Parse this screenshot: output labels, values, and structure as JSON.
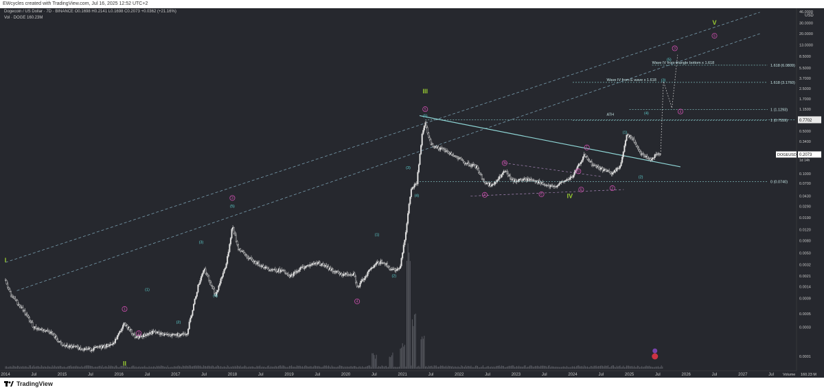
{
  "header": {
    "caption": "EWcycles created with TradingView.com, Jul 16, 2025 12:52 UTC+2"
  },
  "legend": {
    "line1": "Dogecoin / US Dollar · 7D · BINANCE  O0.1698  H0.2141  L0.1698  C0.2073  +0.0362 (+21.16%)",
    "line2": "Vol · DOGE   160.23M"
  },
  "footer": {
    "brand": "TradingView"
  },
  "colors": {
    "background": "#26282e",
    "candle": "#d6d6d6",
    "teal": "#5fd3d3",
    "magenta": "#d04fb0",
    "green": "#9acd32",
    "channel": "#7a9fb0",
    "price_tag": "#ffffff"
  },
  "chart_data": {
    "type": "candlestick",
    "symbol": "DOGEUSD",
    "timeframe": "7D",
    "y_scale": "log",
    "ylabel": "USD",
    "y_ticks": [
      "46.0000",
      "30.0000",
      "20.0000",
      "13.0000",
      "8.5000",
      "5.5000",
      "3.7000",
      "2.5000",
      "1.7000",
      "1.1500",
      "0.7702",
      "0.5000",
      "0.3400",
      "0.2073",
      "0.1000",
      "0.0700",
      "0.0430",
      "0.0290",
      "0.0190",
      "0.0120",
      "0.0080",
      "0.0050",
      "0.0032",
      "0.0021",
      "0.0014",
      "0.0009",
      "0.0005",
      "0.0003",
      "0.0001"
    ],
    "x_ticks": [
      "2014",
      "Jul",
      "2015",
      "Jul",
      "2016",
      "Jul",
      "2017",
      "Jul",
      "2018",
      "Jul",
      "2019",
      "Jul",
      "2020",
      "Jul",
      "2021",
      "Jul",
      "2022",
      "Jul",
      "2023",
      "Jul",
      "2024",
      "Jul",
      "2025",
      "Jul",
      "2026",
      "Jul",
      "2027",
      "Jul"
    ],
    "price_path": [
      [
        2014.0,
        0.0018
      ],
      [
        2014.1,
        0.001
      ],
      [
        2014.3,
        0.0006
      ],
      [
        2014.5,
        0.0003
      ],
      [
        2014.8,
        0.00025
      ],
      [
        2015.0,
        0.00015
      ],
      [
        2015.5,
        0.00013
      ],
      [
        2015.9,
        0.00016
      ],
      [
        2016.1,
        0.00035
      ],
      [
        2016.3,
        0.0002
      ],
      [
        2016.6,
        0.00025
      ],
      [
        2016.9,
        0.00022
      ],
      [
        2017.2,
        0.00024
      ],
      [
        2017.4,
        0.0015
      ],
      [
        2017.5,
        0.0028
      ],
      [
        2017.7,
        0.001
      ],
      [
        2017.9,
        0.0035
      ],
      [
        2018.0,
        0.014
      ],
      [
        2018.1,
        0.006
      ],
      [
        2018.3,
        0.004
      ],
      [
        2018.6,
        0.0028
      ],
      [
        2018.9,
        0.0025
      ],
      [
        2019.0,
        0.002
      ],
      [
        2019.2,
        0.0028
      ],
      [
        2019.5,
        0.0035
      ],
      [
        2019.7,
        0.0028
      ],
      [
        2019.9,
        0.0022
      ],
      [
        2020.15,
        0.0023
      ],
      [
        2020.2,
        0.0013
      ],
      [
        2020.4,
        0.0025
      ],
      [
        2020.5,
        0.0032
      ],
      [
        2020.65,
        0.0037
      ],
      [
        2020.8,
        0.0026
      ],
      [
        2020.95,
        0.0028
      ],
      [
        2021.05,
        0.01
      ],
      [
        2021.15,
        0.055
      ],
      [
        2021.25,
        0.07
      ],
      [
        2021.35,
        0.5
      ],
      [
        2021.4,
        0.7
      ],
      [
        2021.5,
        0.3
      ],
      [
        2021.7,
        0.25
      ],
      [
        2021.9,
        0.2
      ],
      [
        2022.1,
        0.15
      ],
      [
        2022.3,
        0.13
      ],
      [
        2022.45,
        0.07
      ],
      [
        2022.6,
        0.065
      ],
      [
        2022.8,
        0.11
      ],
      [
        2022.95,
        0.075
      ],
      [
        2023.1,
        0.08
      ],
      [
        2023.3,
        0.08
      ],
      [
        2023.5,
        0.065
      ],
      [
        2023.65,
        0.06
      ],
      [
        2023.85,
        0.075
      ],
      [
        2024.0,
        0.09
      ],
      [
        2024.2,
        0.2
      ],
      [
        2024.35,
        0.14
      ],
      [
        2024.6,
        0.11
      ],
      [
        2024.7,
        0.1
      ],
      [
        2024.85,
        0.14
      ],
      [
        2024.95,
        0.45
      ],
      [
        2025.05,
        0.38
      ],
      [
        2025.2,
        0.22
      ],
      [
        2025.35,
        0.17
      ],
      [
        2025.45,
        0.2
      ],
      [
        2025.55,
        0.2073
      ]
    ],
    "volume_spikes": [
      [
        2020.5,
        0.12
      ],
      [
        2021.1,
        1.0
      ],
      [
        2021.2,
        0.45
      ],
      [
        2021.35,
        0.3
      ],
      [
        2021.0,
        0.2
      ],
      [
        2020.8,
        0.12
      ]
    ],
    "last_price_label": "0.2073",
    "symbol_tag": "DOGEUSD",
    "countdown": "1d 14h",
    "volume_label": "Volume",
    "volume_value": "160.23 M",
    "ath_price": "0.7702",
    "annotations": {
      "primary_waves": [
        {
          "label": "I",
          "t": 2014.0,
          "p": 0.0035
        },
        {
          "label": "II",
          "t": 2016.1,
          "p": 7e-05
        },
        {
          "label": "III",
          "t": 2021.4,
          "p": 2.1
        },
        {
          "label": "IV",
          "t": 2023.95,
          "p": 0.04
        },
        {
          "label": "V",
          "t": 2026.5,
          "p": 28
        }
      ],
      "magenta_circles": [
        {
          "label": "1",
          "t": 2016.1,
          "p": 0.0006
        },
        {
          "label": "2",
          "t": 2016.35,
          "p": 0.00024
        },
        {
          "label": "3",
          "t": 2018.0,
          "p": 0.04
        },
        {
          "label": "4",
          "t": 2020.2,
          "p": 0.0008
        },
        {
          "label": "5",
          "t": 2021.4,
          "p": 1.15
        },
        {
          "label": "A",
          "t": 2022.45,
          "p": 0.045
        },
        {
          "label": "B",
          "t": 2022.8,
          "p": 0.15
        },
        {
          "label": "C",
          "t": 2023.45,
          "p": 0.046
        },
        {
          "label": "D",
          "t": 2024.1,
          "p": 0.11
        },
        {
          "label": "E",
          "t": 2024.15,
          "p": 0.055
        },
        {
          "label": "1",
          "t": 2024.25,
          "p": 0.27
        },
        {
          "label": "2",
          "t": 2024.7,
          "p": 0.058
        },
        {
          "label": "3",
          "t": 2025.8,
          "p": 11.5
        },
        {
          "label": "4",
          "t": 2025.9,
          "p": 1.05
        },
        {
          "label": "5",
          "t": 2026.5,
          "p": 18.5
        }
      ],
      "teal_labels": [
        {
          "label": "(1)",
          "t": 2016.5,
          "p": 0.0012
        },
        {
          "label": "(2)",
          "t": 2017.05,
          "p": 0.00035
        },
        {
          "label": "(3)",
          "t": 2017.45,
          "p": 0.0072
        },
        {
          "label": "(4)",
          "t": 2017.7,
          "p": 0.00095
        },
        {
          "label": "(5)",
          "t": 2018.0,
          "p": 0.028
        },
        {
          "label": "(1)",
          "t": 2020.55,
          "p": 0.0095
        },
        {
          "label": "(2)",
          "t": 2020.85,
          "p": 0.002
        },
        {
          "label": "(3)",
          "t": 2021.1,
          "p": 0.12
        },
        {
          "label": "(4)",
          "t": 2021.25,
          "p": 0.042
        },
        {
          "label": "(5)",
          "t": 2021.4,
          "p": 0.85
        },
        {
          "label": "(1)",
          "t": 2024.92,
          "p": 0.46
        },
        {
          "label": "(2)",
          "t": 2025.2,
          "p": 0.085
        },
        {
          "label": "(3)",
          "t": 2025.6,
          "p": 3.3
        },
        {
          "label": "(4)",
          "t": 2025.3,
          "p": 0.95
        },
        {
          "label": "(5)",
          "t": 2025.7,
          "p": 7.2
        }
      ],
      "fib_levels": [
        {
          "label": "1.618 (6.0809)",
          "p": 6.08,
          "t0": 2025.4
        },
        {
          "label": "1.618 (3.1760)",
          "p": 3.176,
          "t0": 2024.0
        },
        {
          "label": "1 (1.1293)",
          "p": 1.129,
          "t0": 2025.0
        },
        {
          "label": "1 (0.7559)",
          "p": 0.756,
          "t0": 2024.0
        },
        {
          "label": "0 (0.0740)",
          "p": 0.074,
          "t0": 2021.3
        }
      ],
      "texts": [
        {
          "text": "Wave IV from triangle bottom  x 1.618",
          "t": 2025.4,
          "p": 6.08
        },
        {
          "text": "Wave IV from E wave  x 1.618",
          "t": 2024.6,
          "p": 3.176
        },
        {
          "text": "ATH",
          "t": 2024.6,
          "p": 0.85
        }
      ]
    }
  }
}
